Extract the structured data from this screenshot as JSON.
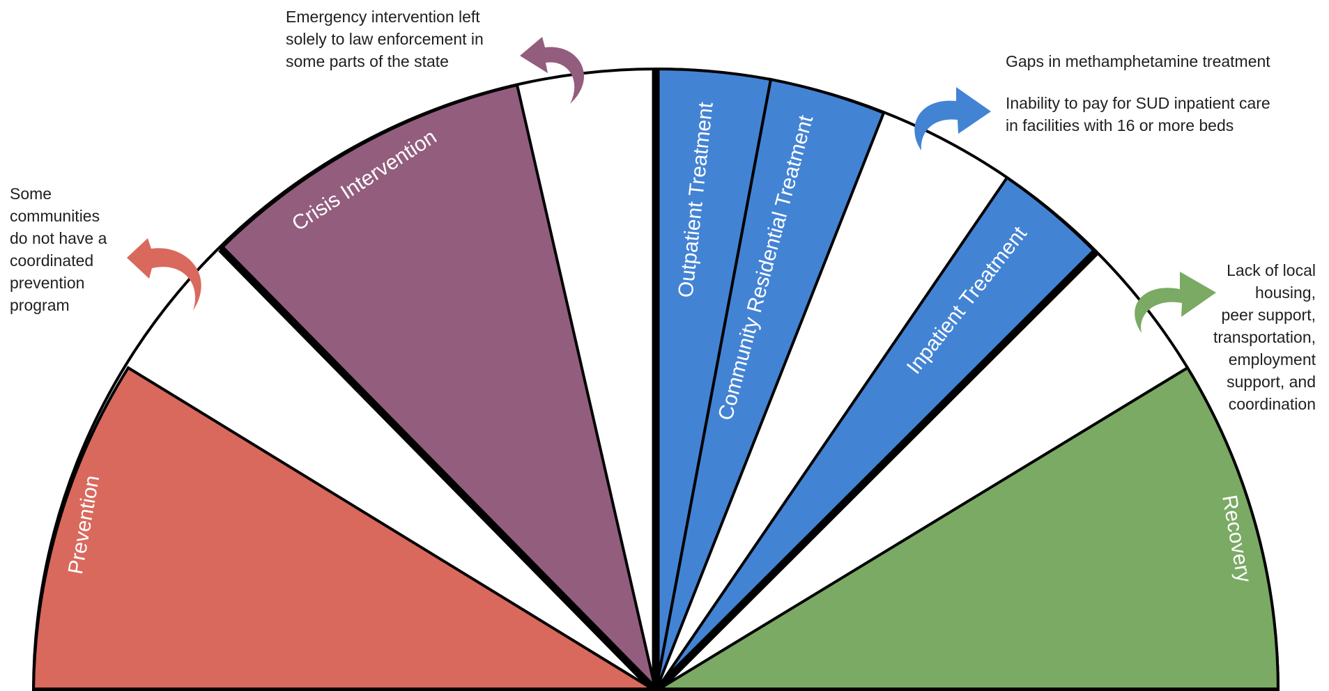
{
  "segments": {
    "prevention": {
      "label": "Prevention",
      "color": "#d9695d"
    },
    "crisis": {
      "label": "Crisis Intervention",
      "color": "#935d7e"
    },
    "outpatient": {
      "label": "Outpatient Treatment",
      "color": "#4383d4"
    },
    "community": {
      "label": "Community Residential Treatment",
      "color": "#4383d4"
    },
    "inpatient": {
      "label": "Inpatient Treatment",
      "color": "#4383d4"
    },
    "recovery": {
      "label": "Recovery",
      "color": "#7aaa63"
    }
  },
  "notes": {
    "prevention": "Some\ncommunities\ndo not have a\ncoordinated\nprevention\nprogram",
    "crisis": "Emergency intervention left\nsolely to law enforcement in\nsome parts of the state",
    "treatment_1": "Gaps in methamphetamine treatment",
    "treatment_2": "Inability to pay for SUD inpatient care\nin facilities with 16 or more beds",
    "recovery": "Lack of local\nhousing,\npeer support,\ntransportation,\nemployment\nsupport, and\ncoordination"
  },
  "arrows": {
    "prevention": {
      "icon": "curved-arrow-left-icon",
      "color": "#d9695d"
    },
    "crisis": {
      "icon": "curved-arrow-left-icon",
      "color": "#935d7e"
    },
    "treatment": {
      "icon": "curved-arrow-right-icon",
      "color": "#4383d4"
    },
    "recovery": {
      "icon": "curved-arrow-right-icon",
      "color": "#7aaa63"
    }
  }
}
